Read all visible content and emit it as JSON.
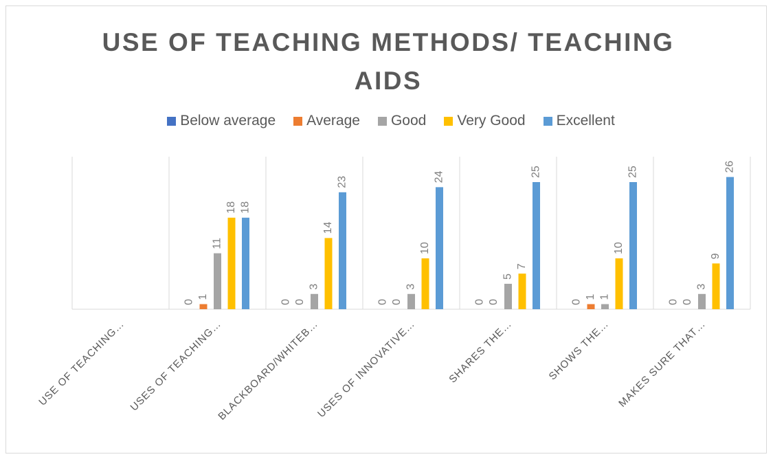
{
  "chart_data": {
    "type": "bar",
    "title": "USE OF TEACHING METHODS/ TEACHING AIDS",
    "categories": [
      "USE OF TEACHING…",
      "USES OF TEACHING…",
      "BLACKBOARD/WHITEB…",
      "USES OF INNOVATIVE…",
      "SHARES THE…",
      "SHOWS THE…",
      "MAKES SURE THAT…"
    ],
    "series": [
      {
        "name": "Below average",
        "color": "#4472c4",
        "values": [
          null,
          0,
          0,
          0,
          0,
          0,
          0
        ]
      },
      {
        "name": "Average",
        "color": "#ed7d31",
        "values": [
          null,
          1,
          0,
          0,
          0,
          1,
          0
        ]
      },
      {
        "name": "Good",
        "color": "#a5a5a5",
        "values": [
          null,
          11,
          3,
          3,
          5,
          1,
          3
        ]
      },
      {
        "name": "Very Good",
        "color": "#ffc000",
        "values": [
          null,
          18,
          14,
          10,
          7,
          10,
          9
        ]
      },
      {
        "name": "Excellent",
        "color": "#5b9bd5",
        "values": [
          null,
          18,
          23,
          24,
          25,
          25,
          26
        ]
      }
    ],
    "ylim": [
      0,
      30
    ],
    "legend": "top"
  }
}
